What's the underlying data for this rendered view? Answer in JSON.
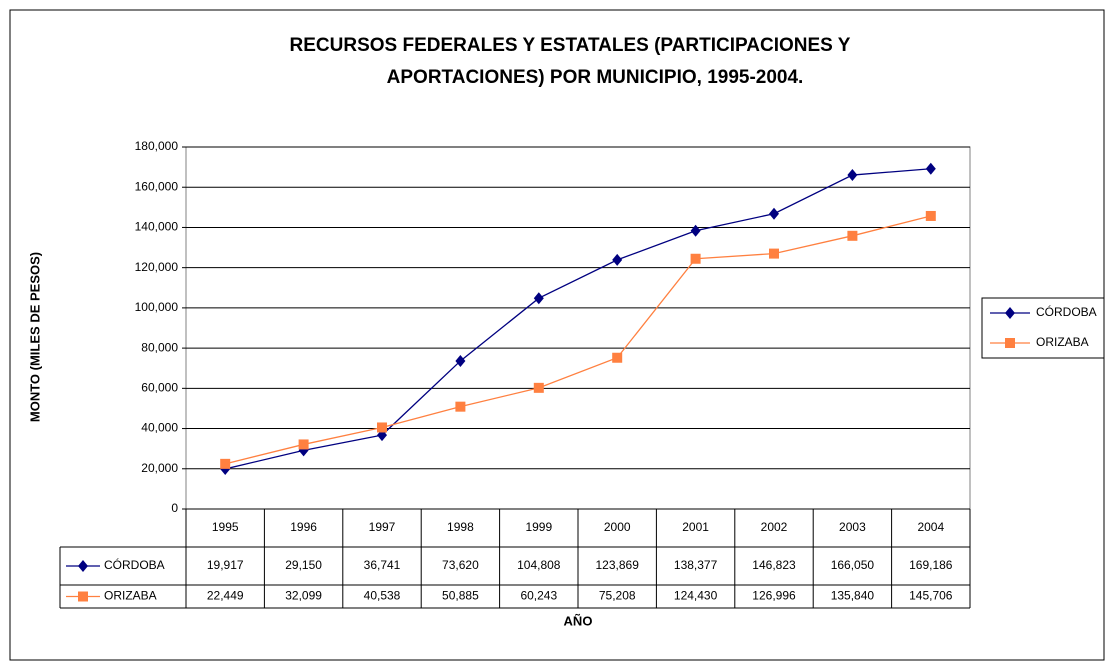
{
  "chart_data": {
    "type": "line",
    "title": [
      "RECURSOS FEDERALES Y ESTATALES (PARTICIPACIONES Y",
      "APORTACIONES) POR MUNICIPIO, 1995-2004."
    ],
    "ylabel": "MONTO (MILES DE PESOS)",
    "xlabel": "AÑO",
    "categories": [
      "1995",
      "1996",
      "1997",
      "1998",
      "1999",
      "2000",
      "2001",
      "2002",
      "2003",
      "2004"
    ],
    "series": [
      {
        "name": "CÓRDOBA",
        "color": "#000080",
        "marker": "diamond",
        "values": [
          19917,
          29150,
          36741,
          73620,
          104808,
          123869,
          138377,
          146823,
          166050,
          169186
        ],
        "value_labels": [
          "19,917",
          "29,150",
          "36,741",
          "73,620",
          "104,808",
          "123,869",
          "138,377",
          "146,823",
          "166,050",
          "169,186"
        ]
      },
      {
        "name": "ORIZABA",
        "color": "#ff8040",
        "marker": "square",
        "values": [
          22449,
          32099,
          40538,
          50885,
          60243,
          75208,
          124430,
          126996,
          135840,
          145706
        ],
        "value_labels": [
          "22,449",
          "32,099",
          "40,538",
          "50,885",
          "60,243",
          "75,208",
          "124,430",
          "126,996",
          "135,840",
          "145,706"
        ]
      }
    ],
    "ylim": [
      0,
      180000
    ],
    "yticks": [
      0,
      {
        "value": 20000,
        "label": "20,000"
      },
      {
        "value": 40000,
        "label": "40,000"
      },
      {
        "value": 60000,
        "label": "60,000"
      },
      {
        "value": 80000,
        "label": "80,000"
      },
      {
        "value": 100000,
        "label": "100,000"
      },
      {
        "value": 120000,
        "label": "120,000"
      },
      {
        "value": 140000,
        "label": "140,000"
      },
      {
        "value": 160000,
        "label": "160,000"
      },
      {
        "value": 180000,
        "label": "180,000"
      }
    ],
    "grid": true,
    "legend": "right"
  }
}
